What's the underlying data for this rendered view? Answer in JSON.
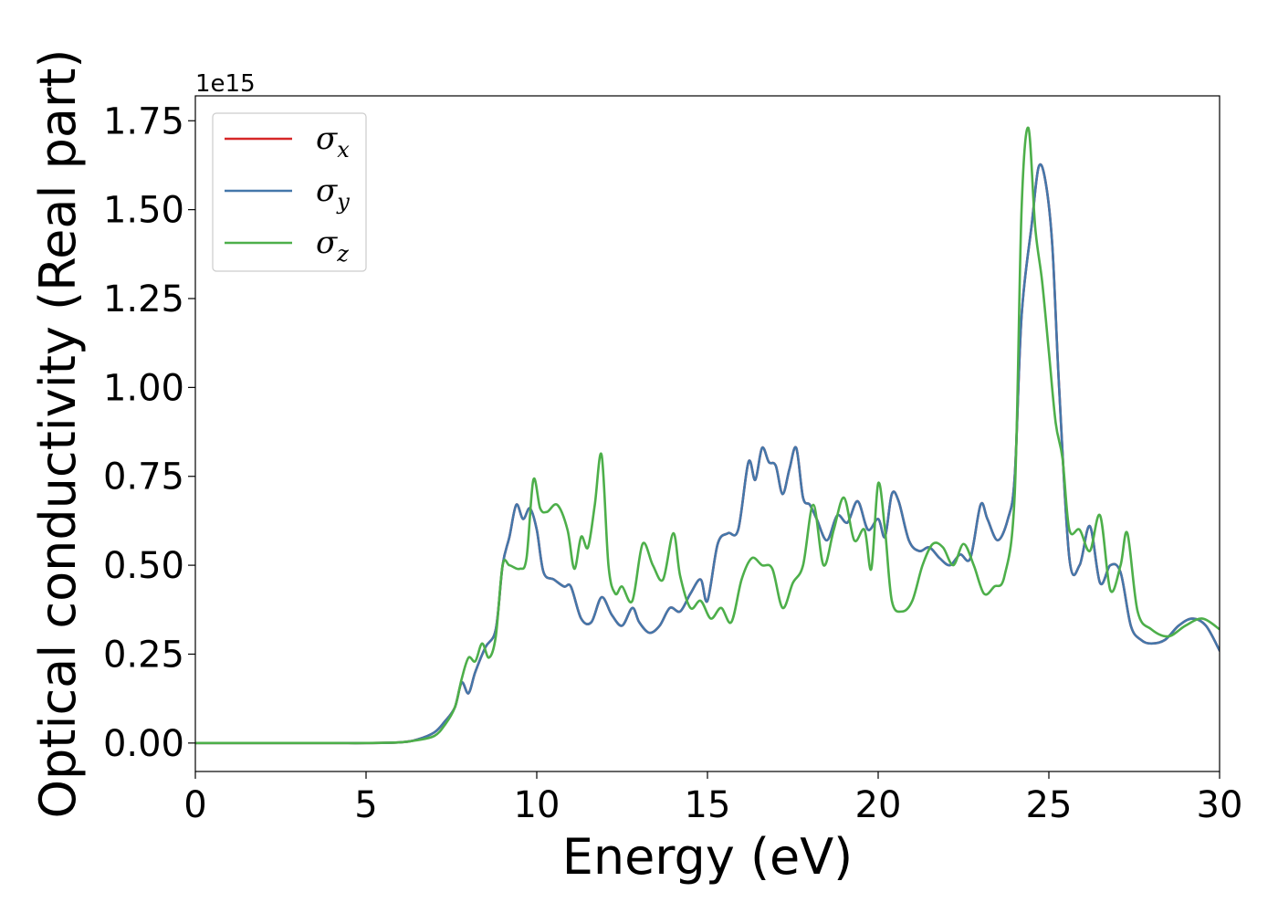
{
  "chart_data": {
    "type": "line",
    "title": "",
    "xlabel": "Energy (eV)",
    "ylabel": "Optical conductivity (Real part)",
    "y_offset_label": "1e15",
    "xlim": [
      0,
      30
    ],
    "ylim": [
      -0.08,
      1.82
    ],
    "x_ticks": [
      0,
      5,
      10,
      15,
      20,
      25,
      30
    ],
    "x_tick_labels": [
      "0",
      "5",
      "10",
      "15",
      "20",
      "25",
      "30"
    ],
    "y_ticks": [
      0,
      0.25,
      0.5,
      0.75,
      1.0,
      1.25,
      1.5,
      1.75
    ],
    "y_tick_labels": [
      "0.00",
      "0.25",
      "0.50",
      "0.75",
      "1.00",
      "1.25",
      "1.50",
      "1.75"
    ],
    "grid": false,
    "legend_position": "top-left",
    "series": [
      {
        "name": "σ",
        "subscript": "x",
        "color": "#d62728",
        "x": [
          0,
          2,
          4,
          5,
          6,
          6.5,
          7,
          7.3,
          7.6,
          7.8,
          8.0,
          8.2,
          8.5,
          8.8,
          9.0,
          9.2,
          9.4,
          9.6,
          9.8,
          10.0,
          10.2,
          10.5,
          10.8,
          11.0,
          11.3,
          11.6,
          11.9,
          12.2,
          12.5,
          12.8,
          13.0,
          13.3,
          13.6,
          13.9,
          14.2,
          14.5,
          14.8,
          15.0,
          15.3,
          15.6,
          15.9,
          16.2,
          16.4,
          16.6,
          16.8,
          17.0,
          17.2,
          17.4,
          17.6,
          17.8,
          18.0,
          18.2,
          18.5,
          18.8,
          19.1,
          19.4,
          19.7,
          20.0,
          20.2,
          20.4,
          20.6,
          20.9,
          21.2,
          21.5,
          21.8,
          22.1,
          22.4,
          22.7,
          23.0,
          23.2,
          23.5,
          23.8,
          24.0,
          24.2,
          24.5,
          24.7,
          24.9,
          25.1,
          25.3,
          25.6,
          25.9,
          26.2,
          26.5,
          26.8,
          27.1,
          27.4,
          27.7,
          28.0,
          28.4,
          28.8,
          29.2,
          29.6,
          30.0
        ],
        "y": [
          0,
          0,
          0,
          0,
          0.002,
          0.01,
          0.03,
          0.06,
          0.1,
          0.17,
          0.14,
          0.2,
          0.27,
          0.32,
          0.5,
          0.58,
          0.67,
          0.63,
          0.66,
          0.6,
          0.48,
          0.46,
          0.44,
          0.44,
          0.35,
          0.34,
          0.41,
          0.36,
          0.33,
          0.38,
          0.34,
          0.31,
          0.33,
          0.38,
          0.37,
          0.42,
          0.46,
          0.4,
          0.56,
          0.59,
          0.6,
          0.79,
          0.74,
          0.83,
          0.79,
          0.78,
          0.7,
          0.77,
          0.83,
          0.69,
          0.67,
          0.63,
          0.57,
          0.64,
          0.62,
          0.68,
          0.6,
          0.63,
          0.58,
          0.7,
          0.68,
          0.57,
          0.54,
          0.55,
          0.52,
          0.5,
          0.53,
          0.52,
          0.67,
          0.63,
          0.57,
          0.63,
          0.75,
          1.2,
          1.46,
          1.62,
          1.58,
          1.4,
          1.0,
          0.52,
          0.5,
          0.61,
          0.45,
          0.5,
          0.48,
          0.33,
          0.29,
          0.28,
          0.29,
          0.33,
          0.35,
          0.33,
          0.26
        ]
      },
      {
        "name": "σ",
        "subscript": "y",
        "color": "#4477aa",
        "x": [
          0,
          2,
          4,
          5,
          6,
          6.5,
          7,
          7.3,
          7.6,
          7.8,
          8.0,
          8.2,
          8.5,
          8.8,
          9.0,
          9.2,
          9.4,
          9.6,
          9.8,
          10.0,
          10.2,
          10.5,
          10.8,
          11.0,
          11.3,
          11.6,
          11.9,
          12.2,
          12.5,
          12.8,
          13.0,
          13.3,
          13.6,
          13.9,
          14.2,
          14.5,
          14.8,
          15.0,
          15.3,
          15.6,
          15.9,
          16.2,
          16.4,
          16.6,
          16.8,
          17.0,
          17.2,
          17.4,
          17.6,
          17.8,
          18.0,
          18.2,
          18.5,
          18.8,
          19.1,
          19.4,
          19.7,
          20.0,
          20.2,
          20.4,
          20.6,
          20.9,
          21.2,
          21.5,
          21.8,
          22.1,
          22.4,
          22.7,
          23.0,
          23.2,
          23.5,
          23.8,
          24.0,
          24.2,
          24.5,
          24.7,
          24.9,
          25.1,
          25.3,
          25.6,
          25.9,
          26.2,
          26.5,
          26.8,
          27.1,
          27.4,
          27.7,
          28.0,
          28.4,
          28.8,
          29.2,
          29.6,
          30.0
        ],
        "y": [
          0,
          0,
          0,
          0,
          0.002,
          0.01,
          0.03,
          0.06,
          0.1,
          0.17,
          0.14,
          0.2,
          0.27,
          0.32,
          0.5,
          0.58,
          0.67,
          0.63,
          0.66,
          0.6,
          0.48,
          0.46,
          0.44,
          0.44,
          0.35,
          0.34,
          0.41,
          0.36,
          0.33,
          0.38,
          0.34,
          0.31,
          0.33,
          0.38,
          0.37,
          0.42,
          0.46,
          0.4,
          0.56,
          0.59,
          0.6,
          0.79,
          0.74,
          0.83,
          0.79,
          0.78,
          0.7,
          0.77,
          0.83,
          0.69,
          0.67,
          0.63,
          0.57,
          0.64,
          0.62,
          0.68,
          0.6,
          0.63,
          0.58,
          0.7,
          0.68,
          0.57,
          0.54,
          0.55,
          0.52,
          0.5,
          0.53,
          0.52,
          0.67,
          0.63,
          0.57,
          0.63,
          0.75,
          1.2,
          1.46,
          1.62,
          1.58,
          1.4,
          1.0,
          0.52,
          0.5,
          0.61,
          0.45,
          0.5,
          0.48,
          0.33,
          0.29,
          0.28,
          0.29,
          0.33,
          0.35,
          0.33,
          0.26
        ]
      },
      {
        "name": "σ",
        "subscript": "z",
        "color": "#4daf4a",
        "x": [
          0,
          2,
          4,
          5,
          6,
          6.5,
          7,
          7.3,
          7.6,
          7.8,
          8.0,
          8.2,
          8.4,
          8.6,
          8.8,
          9.0,
          9.2,
          9.5,
          9.7,
          9.9,
          10.1,
          10.3,
          10.6,
          10.9,
          11.1,
          11.3,
          11.5,
          11.7,
          11.9,
          12.1,
          12.3,
          12.5,
          12.8,
          13.1,
          13.4,
          13.7,
          14.0,
          14.2,
          14.5,
          14.8,
          15.1,
          15.4,
          15.7,
          16.0,
          16.3,
          16.6,
          16.9,
          17.2,
          17.5,
          17.8,
          18.1,
          18.4,
          18.7,
          19.0,
          19.3,
          19.6,
          19.8,
          20.0,
          20.2,
          20.4,
          20.7,
          21.0,
          21.3,
          21.6,
          21.9,
          22.2,
          22.5,
          22.8,
          23.1,
          23.4,
          23.7,
          24.0,
          24.2,
          24.4,
          24.6,
          24.8,
          25.0,
          25.2,
          25.4,
          25.6,
          25.9,
          26.2,
          26.5,
          26.8,
          27.1,
          27.3,
          27.6,
          28.0,
          28.5,
          29.0,
          29.5,
          30.0
        ],
        "y": [
          0,
          0,
          0,
          0,
          0.002,
          0.008,
          0.02,
          0.05,
          0.1,
          0.18,
          0.24,
          0.23,
          0.28,
          0.24,
          0.3,
          0.5,
          0.5,
          0.49,
          0.52,
          0.74,
          0.66,
          0.65,
          0.67,
          0.6,
          0.49,
          0.58,
          0.55,
          0.67,
          0.81,
          0.5,
          0.42,
          0.44,
          0.4,
          0.56,
          0.5,
          0.46,
          0.59,
          0.47,
          0.38,
          0.4,
          0.35,
          0.38,
          0.34,
          0.46,
          0.52,
          0.5,
          0.49,
          0.38,
          0.45,
          0.5,
          0.67,
          0.5,
          0.6,
          0.69,
          0.57,
          0.6,
          0.49,
          0.73,
          0.6,
          0.4,
          0.37,
          0.4,
          0.5,
          0.56,
          0.55,
          0.5,
          0.56,
          0.5,
          0.42,
          0.44,
          0.47,
          0.7,
          1.5,
          1.73,
          1.45,
          1.3,
          1.1,
          0.9,
          0.8,
          0.6,
          0.6,
          0.54,
          0.64,
          0.43,
          0.5,
          0.59,
          0.37,
          0.32,
          0.3,
          0.33,
          0.35,
          0.32
        ]
      }
    ]
  }
}
